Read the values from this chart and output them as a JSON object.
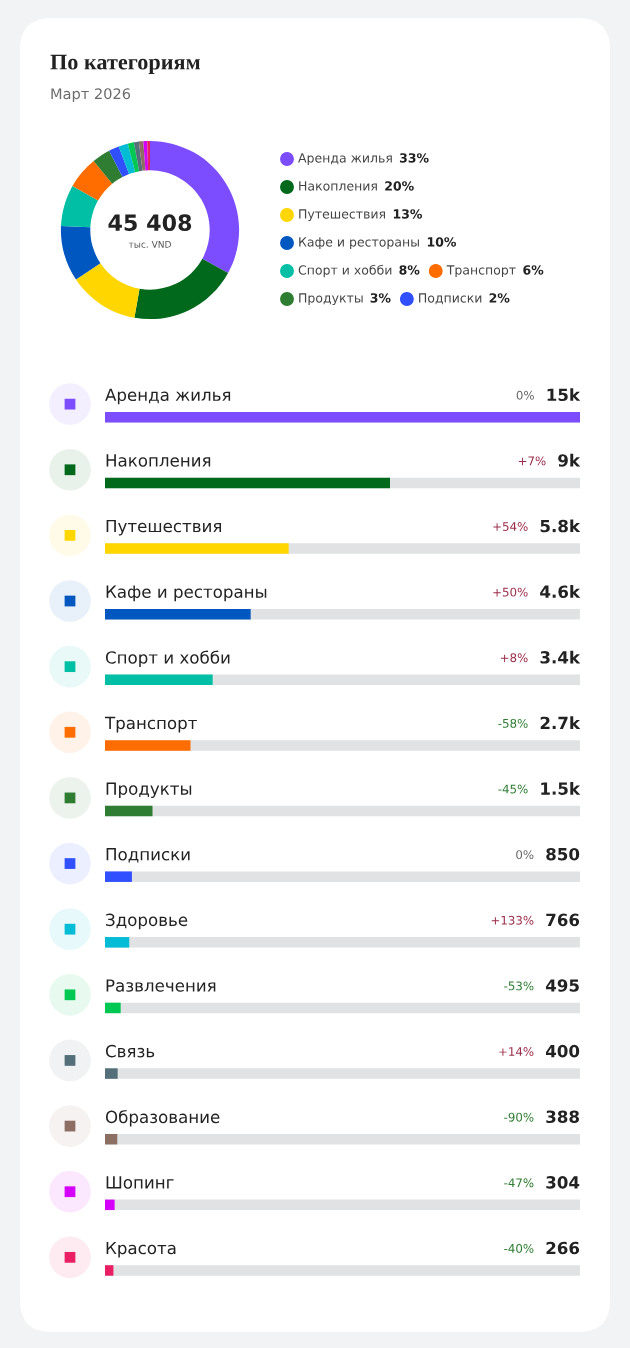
{
  "chart_data": [
    {
      "type": "donut",
      "title": "По категориям",
      "subtitle": "Март 2026",
      "categories": [
        "Аренда жилья",
        "Накопления",
        "Путешествия",
        "Кафе и рестораны",
        "Спорт и хобби",
        "Транспорт",
        "Продукты",
        "Подписки",
        null,
        null,
        null,
        null,
        null,
        null
      ],
      "values": [
        33.0,
        19.8,
        12.8,
        10.1,
        7.5,
        5.9,
        3.3,
        1.9,
        1.7,
        1.1,
        0.9,
        0.8,
        0.7,
        0.5
      ],
      "value_labels": [
        "33%",
        "20%",
        "13%",
        "10%",
        "8%",
        "6%",
        "3%",
        "2%",
        null,
        null,
        null,
        null,
        null,
        null
      ],
      "colors": [
        "#7c4dff",
        "#00691c",
        "#ffd600",
        "#0057c0",
        "#00bfa5",
        "#ff6d00",
        "#2e7d32",
        "#304ffe",
        "#00bcd4",
        "#00c853",
        "#546e7a",
        "#8d6e63",
        "#d500f9",
        "#e91e63"
      ],
      "annotations": [
        "45 408",
        "тыс. VND"
      ],
      "legend": "right"
    },
    {
      "type": "bar",
      "orientation": "horizontal",
      "categories": [
        "Аренда жилья",
        "Накопления",
        "Путешествия",
        "Кафе и рестораны",
        "Спорт и хобби",
        "Транспорт",
        "Продукты",
        "Подписки",
        "Здоровье",
        "Развлечения",
        "Связь",
        "Образование",
        "Шопинг",
        "Красота"
      ],
      "values": [
        15000,
        9000,
        5800,
        4600,
        3400,
        2700,
        1500,
        850,
        766,
        495,
        400,
        388,
        304,
        266
      ],
      "value_labels": [
        "15k",
        "9k",
        "5.8k",
        "4.6k",
        "3.4k",
        "2.7k",
        "1.5k",
        "850",
        "766",
        "495",
        "400",
        "388",
        "304",
        "266"
      ],
      "colors": [
        "#7c4dff",
        "#00691c",
        "#ffd600",
        "#0057c0",
        "#00bfa5",
        "#ff6d00",
        "#2e7d32",
        "#304ffe",
        "#00bcd4",
        "#00c853",
        "#546e7a",
        "#8d6e63",
        "#d500f9",
        "#e91e63"
      ],
      "xlim": [
        0,
        15000
      ],
      "annotations": [
        "0%",
        "+7%",
        "+54%",
        "+50%",
        "+8%",
        "-58%",
        "-45%",
        "0%",
        "+133%",
        "-53%",
        "+14%",
        "-90%",
        "-47%",
        "-40%"
      ]
    }
  ]
}
